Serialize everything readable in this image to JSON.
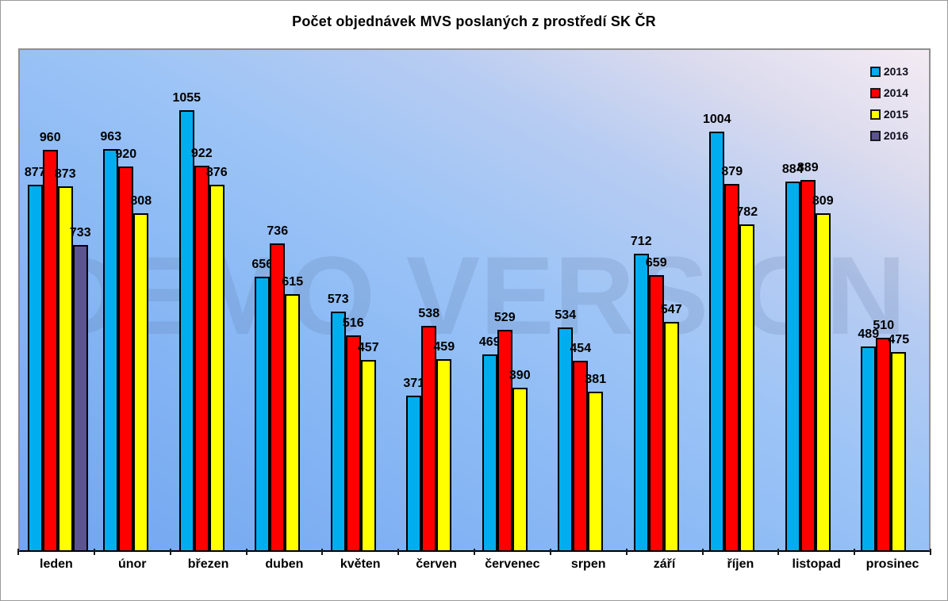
{
  "title": "Počet objednávek MVS poslaných z prostředí SK ČR",
  "watermark": "DEMO VERSION",
  "chart_data": {
    "type": "bar",
    "title": "Počet objednávek MVS poslaných z prostředí SK ČR",
    "categories": [
      "leden",
      "únor",
      "březen",
      "duben",
      "květen",
      "červen",
      "červenec",
      "srpen",
      "září",
      "říjen",
      "listopad",
      "prosinec"
    ],
    "series": [
      {
        "name": "2013",
        "color": "#00AEEF",
        "values": [
          877,
          963,
          1055,
          656,
          573,
          371,
          469,
          534,
          712,
          1004,
          884,
          489
        ]
      },
      {
        "name": "2014",
        "color": "#FF0000",
        "values": [
          960,
          920,
          922,
          736,
          516,
          538,
          529,
          454,
          659,
          879,
          889,
          510
        ]
      },
      {
        "name": "2015",
        "color": "#FFFF00",
        "values": [
          873,
          808,
          876,
          615,
          457,
          459,
          390,
          381,
          547,
          782,
          809,
          475
        ]
      },
      {
        "name": "2016",
        "color": "#5C5490",
        "values": [
          733,
          null,
          null,
          null,
          null,
          null,
          null,
          null,
          null,
          null,
          null,
          null
        ]
      }
    ],
    "xlabel": "",
    "ylabel": "",
    "ylim": [
      0,
      1200
    ],
    "grid": false,
    "data_labels": true,
    "legend_position": "top-right",
    "plot_background": {
      "gradient_from": "#71A5F0",
      "gradient_to": "#F4EBF3"
    }
  }
}
